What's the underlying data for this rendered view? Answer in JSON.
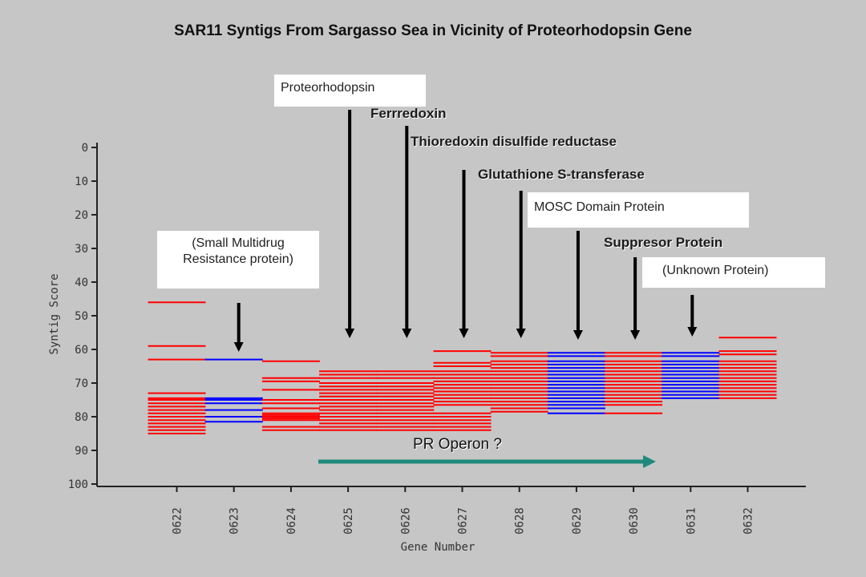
{
  "title": "SAR11 Syntigs From Sargasso Sea in Vicinity of Proteorhodopsin Gene",
  "colors": {
    "red": "#ff0000",
    "blue": "#0000ff",
    "background": "#c6c6c6",
    "operon_arrow": "#1f8a7c",
    "annotation_arrow": "#000000"
  },
  "chart_data": {
    "type": "heatmap",
    "title": "SAR11 Syntigs From Sargasso Sea in Vicinity of Proteorhodopsin Gene",
    "xlabel": "Gene Number",
    "ylabel": "Syntig Score",
    "ylim": [
      0,
      100
    ],
    "y_inverted": true,
    "yticks": [
      "0",
      "10",
      "20",
      "30",
      "40",
      "50",
      "60",
      "70",
      "80",
      "90",
      "100"
    ],
    "categories": [
      "0622",
      "0623",
      "0624",
      "0625",
      "0626",
      "0627",
      "0628",
      "0629",
      "0630",
      "0631",
      "0632"
    ],
    "series": [
      {
        "gene": "0622",
        "color": "red",
        "scores": [
          46,
          59,
          63,
          73,
          74.5,
          75,
          76,
          77,
          78,
          79,
          80,
          81,
          82,
          83,
          84,
          85
        ]
      },
      {
        "gene": "0623",
        "color": "blue",
        "scores": [
          63,
          74.5,
          75,
          76,
          78,
          80,
          81.5
        ]
      },
      {
        "gene": "0624",
        "color": "red",
        "scores": [
          63.5,
          68.5,
          69.5,
          72,
          75,
          76,
          77.5,
          79,
          79.5,
          80,
          80.5,
          81,
          83,
          84
        ]
      },
      {
        "gene": "0625",
        "color": "red",
        "scores": [
          66.5,
          67.5,
          68.5,
          70,
          71,
          72,
          73,
          74,
          75,
          76,
          77,
          78,
          79,
          80,
          81,
          82,
          83,
          84
        ]
      },
      {
        "gene": "0626",
        "color": "red",
        "scores": [
          66.5,
          67.5,
          68.5,
          70,
          71,
          72,
          73,
          74,
          75,
          76,
          77,
          78,
          79,
          80,
          81,
          82,
          83,
          84
        ]
      },
      {
        "gene": "0627",
        "color": "red",
        "scores": [
          60.5,
          64,
          65,
          66.5,
          67.5,
          68.5,
          69.5,
          70.5,
          71.5,
          72.5,
          73.5,
          74.5,
          75.5,
          76.5,
          79,
          80,
          81,
          82,
          83,
          84
        ]
      },
      {
        "gene": "0628",
        "color": "red",
        "scores": [
          61,
          62,
          63.5,
          64.5,
          65.5,
          66.5,
          67.5,
          68.5,
          69.5,
          70.5,
          71.5,
          72.5,
          73.5,
          74.5,
          75.5,
          76.5,
          77.5,
          78.5
        ]
      },
      {
        "gene": "0629",
        "color": "blue",
        "scores": [
          61,
          62,
          63.5,
          64.5,
          65.5,
          66.5,
          67.5,
          68.5,
          69.5,
          70.5,
          71.5,
          72.5,
          73.5,
          74.5,
          75.5,
          76.5,
          77.5,
          79
        ]
      },
      {
        "gene": "0630",
        "color": "red",
        "scores": [
          61,
          62,
          63.5,
          64.5,
          65.5,
          66.5,
          67.5,
          68.5,
          69.5,
          70.5,
          71.5,
          72.5,
          73.5,
          74.5,
          75.5,
          76.5,
          79
        ]
      },
      {
        "gene": "0631",
        "color": "blue",
        "scores": [
          61,
          62,
          63.5,
          64.5,
          65.5,
          66.5,
          67.5,
          68.5,
          69.5,
          70.5,
          71.5,
          72.5,
          73.5,
          74.5
        ]
      },
      {
        "gene": "0632",
        "color": "red",
        "scores": [
          56.5,
          60.5,
          61.5,
          63.5,
          64.5,
          65.5,
          66.5,
          67.5,
          68.5,
          69.5,
          70.5,
          71.5,
          72.5,
          73.5,
          74.5
        ]
      }
    ]
  },
  "annotations": [
    {
      "text": "Proteorhodopsin",
      "gene": "0625"
    },
    {
      "text": "Ferrredoxin",
      "gene": "0626"
    },
    {
      "text": "Thioredoxin disulfide reductase",
      "gene": "0627"
    },
    {
      "text": "Glutathione S-transferase",
      "gene": "0628"
    },
    {
      "text": "MOSC Domain Protein",
      "gene": "0629"
    },
    {
      "text": "Suppresor Protein",
      "gene": "0630"
    },
    {
      "text": "(Unknown Protein)",
      "gene": "0631"
    },
    {
      "text": "(Small Multidrug Resistance protein)",
      "gene": "0623"
    }
  ],
  "operon": {
    "label": "PR Operon ?",
    "from_gene": "0625",
    "to_gene": "0630"
  }
}
